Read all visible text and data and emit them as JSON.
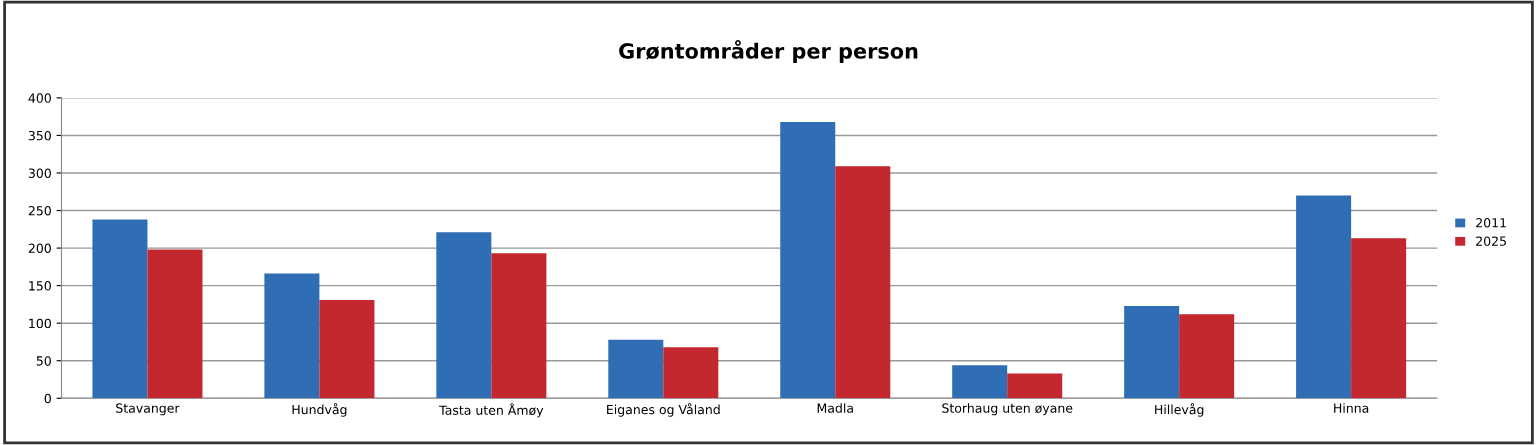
{
  "chart_data": {
    "type": "bar",
    "title": "Grøntområder per person",
    "categories": [
      "Stavanger",
      "Hundvåg",
      "Tasta uten Åmøy",
      "Eiganes og Våland",
      "Madla",
      "Storhaug uten øyane",
      "Hillevåg",
      "Hinna"
    ],
    "series": [
      {
        "name": "2011",
        "color": "#2f6db5",
        "values": [
          238,
          166,
          221,
          78,
          368,
          44,
          123,
          270
        ]
      },
      {
        "name": "2025",
        "color": "#c3282e",
        "values": [
          198,
          131,
          193,
          68,
          309,
          33,
          112,
          213
        ]
      }
    ],
    "ylim": [
      0,
      400
    ],
    "yticks": [
      0,
      50,
      100,
      150,
      200,
      250,
      300,
      350,
      400
    ],
    "grid": "y",
    "legend": "right"
  }
}
